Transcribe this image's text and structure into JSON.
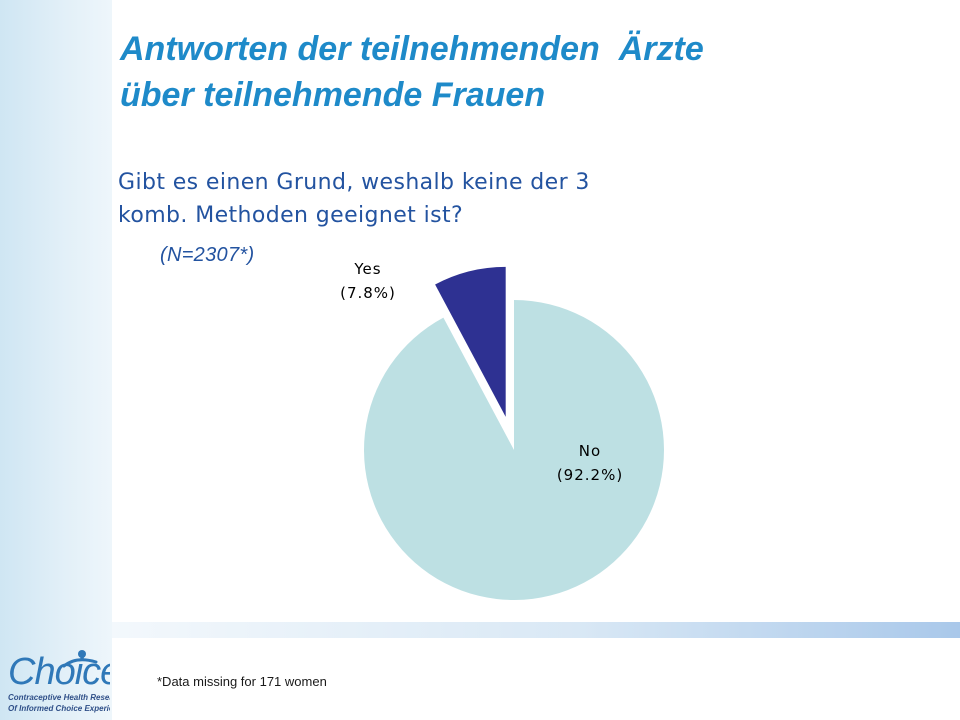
{
  "slide": {
    "title_lines": [
      "Antworten der teilnehmenden  Ärzte",
      "über teilnehmende Frauen"
    ],
    "question_lines": [
      "Gibt es einen Grund, weshalb keine der 3",
      "komb. Methoden geeignet ist?"
    ],
    "sample_label": "(N=2307*)",
    "footnote": "*Data missing for 171 women",
    "logo": {
      "word": "Choice",
      "subtitle_lines": [
        "Contraceptive Health Research",
        "Of Informed Choice Experience"
      ]
    }
  },
  "colors": {
    "title": "#1e8ac9",
    "question": "#2353a0",
    "no_slice": "#bde0e3",
    "yes_slice": "#2e3192"
  },
  "chart_data": {
    "type": "pie",
    "title": "Gibt es einen Grund, weshalb keine der 3 komb. Methoden geeignet ist?",
    "slices": [
      {
        "label": "No",
        "pct_label": "(92.2%)",
        "value": 92.2,
        "color": "#bde0e3",
        "exploded": false
      },
      {
        "label": "Yes",
        "pct_label": "(7.8%)",
        "value": 7.8,
        "color": "#2e3192",
        "exploded": true
      }
    ],
    "start_angle": "12 o'clock, clockwise",
    "legend": "none"
  }
}
